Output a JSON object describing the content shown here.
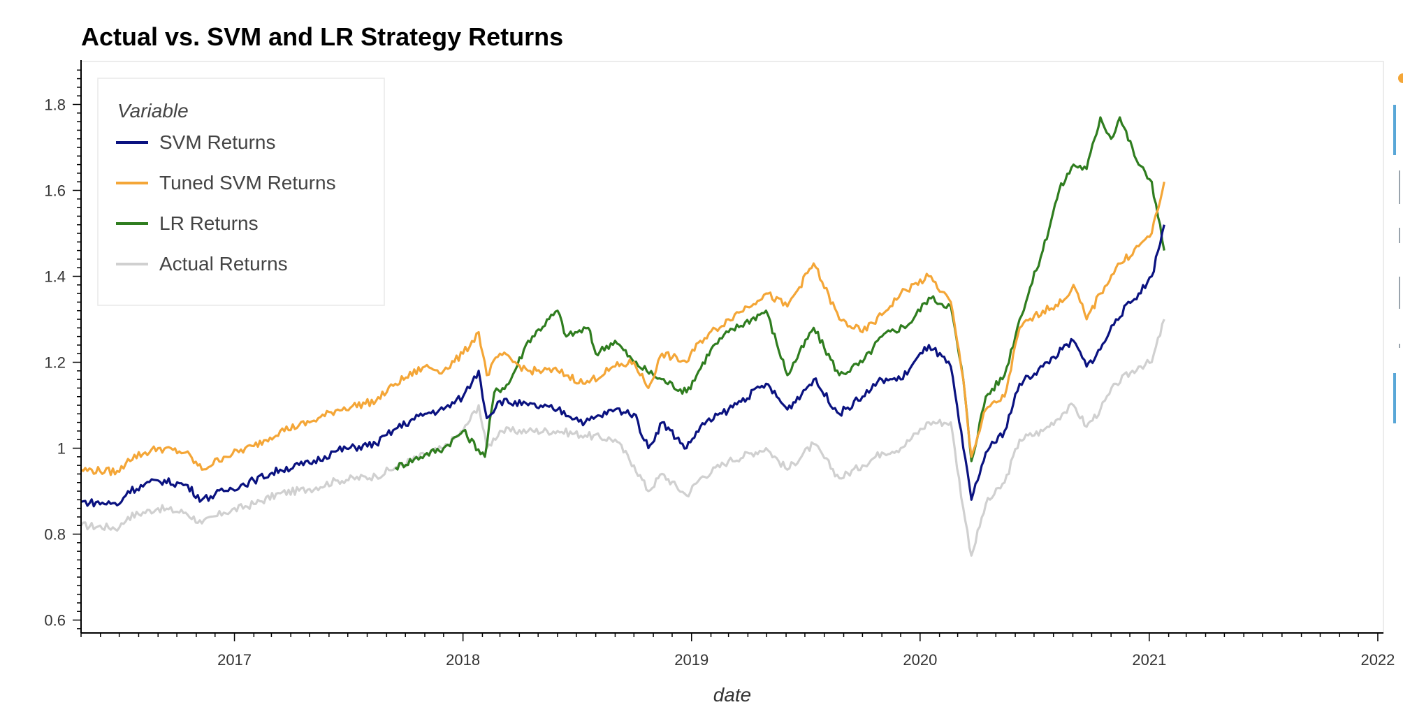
{
  "chart_data": {
    "type": "line",
    "title": "Actual vs. SVM and LR Strategy Returns",
    "xlabel": "date",
    "ylabel": "",
    "xlim": [
      "2016-05-01",
      "2022-01-10"
    ],
    "ylim": [
      0.57,
      1.9
    ],
    "x_ticks": [
      "2017",
      "2018",
      "2019",
      "2020",
      "2021",
      "2022"
    ],
    "y_ticks": [
      "0.6",
      "0.8",
      "1",
      "1.2",
      "1.4",
      "1.6",
      "1.8"
    ],
    "legend": {
      "title": "Variable",
      "placement": "top-left"
    },
    "grid": false,
    "series": [
      {
        "name": "Actual Returns",
        "color": "#d0d0d0",
        "points": [
          [
            "2016-05-01",
            0.82
          ],
          [
            "2016-07-01",
            0.815
          ],
          [
            "2016-07-15",
            0.84
          ],
          [
            "2016-09-01",
            0.86
          ],
          [
            "2016-10-15",
            0.85
          ],
          [
            "2016-11-10",
            0.825
          ],
          [
            "2016-12-15",
            0.85
          ],
          [
            "2017-02-01",
            0.87
          ],
          [
            "2017-03-15",
            0.895
          ],
          [
            "2017-05-01",
            0.905
          ],
          [
            "2017-06-15",
            0.925
          ],
          [
            "2017-08-15",
            0.935
          ],
          [
            "2017-09-15",
            0.955
          ],
          [
            "2017-11-01",
            0.985
          ],
          [
            "2017-12-01",
            1.0
          ],
          [
            "2018-01-01",
            1.04
          ],
          [
            "2018-01-26",
            1.1
          ],
          [
            "2018-02-08",
            1.0
          ],
          [
            "2018-03-01",
            1.04
          ],
          [
            "2018-04-15",
            1.04
          ],
          [
            "2018-06-01",
            1.04
          ],
          [
            "2018-07-15",
            1.03
          ],
          [
            "2018-09-01",
            1.02
          ],
          [
            "2018-10-01",
            0.96
          ],
          [
            "2018-10-24",
            0.9
          ],
          [
            "2018-11-15",
            0.94
          ],
          [
            "2018-12-24",
            0.89
          ],
          [
            "2019-01-15",
            0.93
          ],
          [
            "2019-03-01",
            0.97
          ],
          [
            "2019-04-30",
            1.0
          ],
          [
            "2019-06-03",
            0.95
          ],
          [
            "2019-07-15",
            1.01
          ],
          [
            "2019-08-25",
            0.93
          ],
          [
            "2019-10-01",
            0.96
          ],
          [
            "2019-11-01",
            0.99
          ],
          [
            "2019-12-01",
            1.0
          ],
          [
            "2020-01-15",
            1.06
          ],
          [
            "2020-02-19",
            1.06
          ],
          [
            "2020-03-10",
            0.86
          ],
          [
            "2020-03-23",
            0.75
          ],
          [
            "2020-04-15",
            0.87
          ],
          [
            "2020-05-15",
            0.92
          ],
          [
            "2020-06-08",
            1.02
          ],
          [
            "2020-07-15",
            1.04
          ],
          [
            "2020-08-15",
            1.08
          ],
          [
            "2020-09-02",
            1.1
          ],
          [
            "2020-09-23",
            1.05
          ],
          [
            "2020-10-15",
            1.09
          ],
          [
            "2020-11-09",
            1.15
          ],
          [
            "2020-12-15",
            1.19
          ],
          [
            "2021-01-05",
            1.2
          ],
          [
            "2021-01-25",
            1.3
          ]
        ]
      },
      {
        "name": "LR Returns",
        "color": "#2f7d1f",
        "points": [
          [
            "2017-09-15",
            0.955
          ],
          [
            "2017-11-01",
            0.985
          ],
          [
            "2017-12-01",
            1.0
          ],
          [
            "2018-01-01",
            1.04
          ],
          [
            "2018-02-05",
            0.98
          ],
          [
            "2018-02-20",
            1.13
          ],
          [
            "2018-03-15",
            1.15
          ],
          [
            "2018-04-15",
            1.25
          ],
          [
            "2018-06-01",
            1.32
          ],
          [
            "2018-06-15",
            1.26
          ],
          [
            "2018-07-20",
            1.28
          ],
          [
            "2018-08-01",
            1.22
          ],
          [
            "2018-09-01",
            1.25
          ],
          [
            "2018-10-01",
            1.2
          ],
          [
            "2018-11-01",
            1.17
          ],
          [
            "2018-12-24",
            1.13
          ],
          [
            "2019-02-01",
            1.23
          ],
          [
            "2019-03-01",
            1.27
          ],
          [
            "2019-04-30",
            1.32
          ],
          [
            "2019-06-03",
            1.17
          ],
          [
            "2019-07-15",
            1.28
          ],
          [
            "2019-08-25",
            1.17
          ],
          [
            "2019-10-01",
            1.2
          ],
          [
            "2019-11-01",
            1.26
          ],
          [
            "2019-12-15",
            1.29
          ],
          [
            "2020-01-15",
            1.35
          ],
          [
            "2020-02-19",
            1.33
          ],
          [
            "2020-03-10",
            1.16
          ],
          [
            "2020-03-23",
            0.97
          ],
          [
            "2020-04-15",
            1.12
          ],
          [
            "2020-05-15",
            1.17
          ],
          [
            "2020-06-08",
            1.3
          ],
          [
            "2020-07-15",
            1.46
          ],
          [
            "2020-08-10",
            1.6
          ],
          [
            "2020-09-02",
            1.66
          ],
          [
            "2020-09-23",
            1.65
          ],
          [
            "2020-10-15",
            1.77
          ],
          [
            "2020-11-01",
            1.72
          ],
          [
            "2020-11-15",
            1.77
          ],
          [
            "2020-12-15",
            1.66
          ],
          [
            "2021-01-05",
            1.62
          ],
          [
            "2021-01-25",
            1.46
          ]
        ]
      },
      {
        "name": "Tuned SVM Returns",
        "color": "#f4a637",
        "points": [
          [
            "2016-05-01",
            0.95
          ],
          [
            "2016-07-01",
            0.945
          ],
          [
            "2016-07-15",
            0.975
          ],
          [
            "2016-09-01",
            1.0
          ],
          [
            "2016-10-15",
            0.99
          ],
          [
            "2016-11-10",
            0.95
          ],
          [
            "2016-12-15",
            0.98
          ],
          [
            "2017-02-01",
            1.005
          ],
          [
            "2017-03-15",
            1.04
          ],
          [
            "2017-05-01",
            1.06
          ],
          [
            "2017-06-15",
            1.09
          ],
          [
            "2017-08-15",
            1.11
          ],
          [
            "2017-09-15",
            1.15
          ],
          [
            "2017-11-01",
            1.19
          ],
          [
            "2017-12-01",
            1.18
          ],
          [
            "2018-01-01",
            1.22
          ],
          [
            "2018-01-26",
            1.27
          ],
          [
            "2018-02-08",
            1.17
          ],
          [
            "2018-03-01",
            1.22
          ],
          [
            "2018-04-15",
            1.18
          ],
          [
            "2018-06-01",
            1.18
          ],
          [
            "2018-07-15",
            1.15
          ],
          [
            "2018-09-01",
            1.19
          ],
          [
            "2018-10-01",
            1.2
          ],
          [
            "2018-10-24",
            1.14
          ],
          [
            "2018-11-15",
            1.22
          ],
          [
            "2018-12-24",
            1.2
          ],
          [
            "2019-01-15",
            1.25
          ],
          [
            "2019-03-01",
            1.3
          ],
          [
            "2019-04-30",
            1.36
          ],
          [
            "2019-06-03",
            1.33
          ],
          [
            "2019-07-15",
            1.43
          ],
          [
            "2019-08-25",
            1.3
          ],
          [
            "2019-10-01",
            1.27
          ],
          [
            "2019-11-01",
            1.31
          ],
          [
            "2019-12-01",
            1.36
          ],
          [
            "2020-01-15",
            1.4
          ],
          [
            "2020-02-19",
            1.34
          ],
          [
            "2020-03-10",
            1.16
          ],
          [
            "2020-03-23",
            0.98
          ],
          [
            "2020-04-15",
            1.09
          ],
          [
            "2020-05-15",
            1.12
          ],
          [
            "2020-06-08",
            1.28
          ],
          [
            "2020-07-15",
            1.32
          ],
          [
            "2020-08-15",
            1.34
          ],
          [
            "2020-09-02",
            1.38
          ],
          [
            "2020-09-23",
            1.3
          ],
          [
            "2020-10-15",
            1.36
          ],
          [
            "2020-11-09",
            1.42
          ],
          [
            "2020-12-15",
            1.47
          ],
          [
            "2021-01-05",
            1.5
          ],
          [
            "2021-01-25",
            1.62
          ]
        ]
      },
      {
        "name": "SVM Returns",
        "color": "#0a1280",
        "points": [
          [
            "2016-05-01",
            0.875
          ],
          [
            "2016-07-01",
            0.87
          ],
          [
            "2016-07-15",
            0.9
          ],
          [
            "2016-09-01",
            0.925
          ],
          [
            "2016-10-15",
            0.915
          ],
          [
            "2016-11-10",
            0.88
          ],
          [
            "2016-12-15",
            0.9
          ],
          [
            "2017-02-01",
            0.925
          ],
          [
            "2017-03-15",
            0.95
          ],
          [
            "2017-05-01",
            0.965
          ],
          [
            "2017-06-15",
            0.995
          ],
          [
            "2017-08-15",
            1.01
          ],
          [
            "2017-09-15",
            1.045
          ],
          [
            "2017-11-01",
            1.08
          ],
          [
            "2017-12-01",
            1.09
          ],
          [
            "2018-01-01",
            1.12
          ],
          [
            "2018-01-26",
            1.18
          ],
          [
            "2018-02-08",
            1.07
          ],
          [
            "2018-03-01",
            1.11
          ],
          [
            "2018-04-15",
            1.1
          ],
          [
            "2018-06-01",
            1.09
          ],
          [
            "2018-07-15",
            1.06
          ],
          [
            "2018-09-01",
            1.09
          ],
          [
            "2018-10-01",
            1.08
          ],
          [
            "2018-10-24",
            1.0
          ],
          [
            "2018-11-15",
            1.06
          ],
          [
            "2018-12-24",
            1.0
          ],
          [
            "2019-01-15",
            1.05
          ],
          [
            "2019-03-01",
            1.09
          ],
          [
            "2019-04-30",
            1.15
          ],
          [
            "2019-06-03",
            1.09
          ],
          [
            "2019-07-15",
            1.16
          ],
          [
            "2019-08-25",
            1.08
          ],
          [
            "2019-10-01",
            1.12
          ],
          [
            "2019-11-01",
            1.16
          ],
          [
            "2019-12-01",
            1.16
          ],
          [
            "2020-01-15",
            1.24
          ],
          [
            "2020-02-19",
            1.19
          ],
          [
            "2020-03-10",
            1.0
          ],
          [
            "2020-03-23",
            0.88
          ],
          [
            "2020-04-15",
            0.99
          ],
          [
            "2020-05-15",
            1.04
          ],
          [
            "2020-06-08",
            1.15
          ],
          [
            "2020-07-15",
            1.19
          ],
          [
            "2020-08-15",
            1.23
          ],
          [
            "2020-09-02",
            1.25
          ],
          [
            "2020-09-23",
            1.19
          ],
          [
            "2020-10-15",
            1.23
          ],
          [
            "2020-11-09",
            1.3
          ],
          [
            "2020-12-15",
            1.36
          ],
          [
            "2021-01-05",
            1.4
          ],
          [
            "2021-01-25",
            1.52
          ]
        ]
      }
    ]
  }
}
